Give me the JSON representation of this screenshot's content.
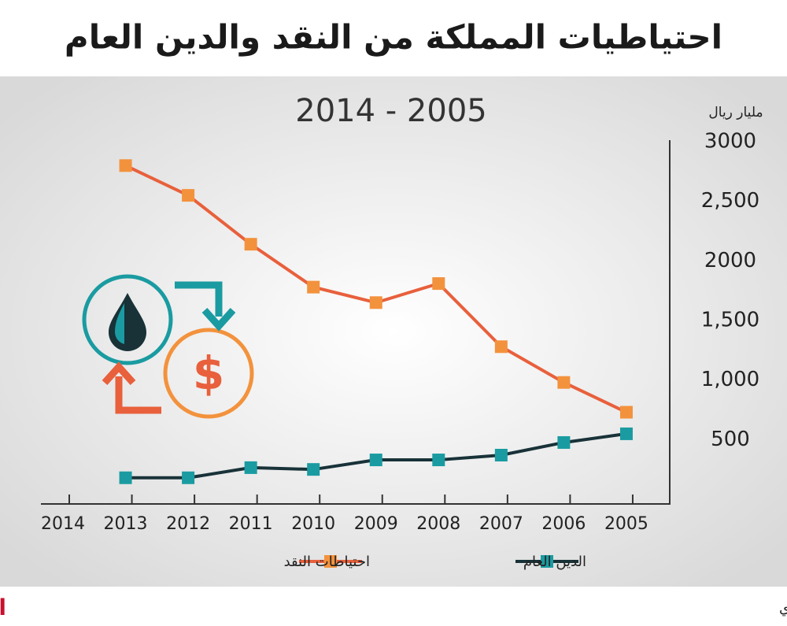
{
  "chart_data": {
    "type": "line",
    "title": "احتياطيات المملكة من النقد والدين العام",
    "subtitle": "2014 - 2005",
    "y_label": "مليار ريال",
    "categories": [
      "2014",
      "2013",
      "2012",
      "2011",
      "2010",
      "2009",
      "2008",
      "2007",
      "2006",
      "2005"
    ],
    "series": [
      {
        "name": "احتياطات النقد",
        "color": "#e8603c",
        "marker_color": "#f3923d",
        "values": [
          null,
          2800,
          2550,
          2140,
          1780,
          1650,
          1810,
          1280,
          980,
          730
        ]
      },
      {
        "name": "الدين العام",
        "color": "#183238",
        "marker_color": "#1a9ba1",
        "values": [
          null,
          180,
          180,
          265,
          250,
          330,
          330,
          370,
          476,
          549
        ]
      }
    ],
    "ylim": [
      0,
      3000
    ],
    "yticks": [
      3000,
      {
        "value": 2500,
        "label": "2,500"
      },
      2000,
      {
        "value": 1500,
        "label": "1,500"
      },
      {
        "value": 1000,
        "label": "1,000"
      },
      500
    ],
    "source": "المصدر: مؤسسة النقد العربي السعودي",
    "logo": "الاقتصادية"
  }
}
